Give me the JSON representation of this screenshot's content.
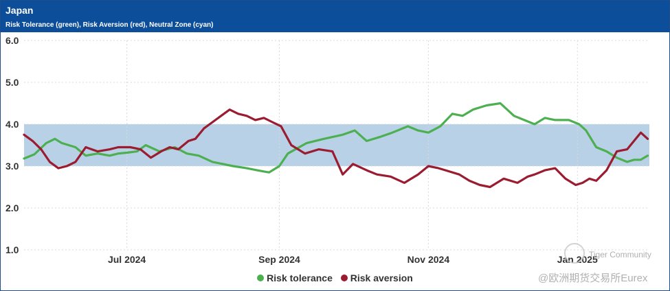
{
  "header": {
    "title": "Japan",
    "subtitle": "Risk Tolerance (green), Risk Aversion (red), Neutral Zone (cyan)"
  },
  "colors": {
    "header_bg": "#0c4e9a",
    "risk_tolerance": "#4caf50",
    "risk_aversion": "#9b1b30",
    "neutral_zone": "#b9d1e6",
    "grid": "#d9d9d9",
    "axis_text": "#333333"
  },
  "watermark": {
    "line1": "Tiger Community",
    "line2": "@欧洲期货交易所Eurex"
  },
  "chart_data": {
    "type": "line",
    "title": "Japan",
    "subtitle": "Risk Tolerance (green), Risk Aversion (red), Neutral Zone (cyan)",
    "xlabel": "",
    "ylabel": "",
    "x_unit": "weeks since 2024-05-20",
    "xlim": [
      0,
      36.5
    ],
    "ylim": [
      1.0,
      6.0
    ],
    "yticks": [
      1.0,
      2.0,
      3.0,
      4.0,
      5.0,
      6.0
    ],
    "ytick_labels": [
      "1.0",
      "2.0",
      "3.0",
      "4.0",
      "5.0",
      "6.0"
    ],
    "xticks": [
      {
        "x": 6.0,
        "label": "Jul 2024"
      },
      {
        "x": 14.9,
        "label": "Sep 2024"
      },
      {
        "x": 23.6,
        "label": "Nov 2024"
      },
      {
        "x": 32.3,
        "label": "Jan 2025"
      }
    ],
    "grid": true,
    "neutral_zone": {
      "name": "Neutral Zone",
      "y_from": 3.0,
      "y_to": 4.0
    },
    "legend": [
      "Risk tolerance",
      "Risk aversion"
    ],
    "legend_position": "bottom-center",
    "series": [
      {
        "name": "Risk tolerance",
        "x": [
          0,
          0.6,
          1.3,
          1.8,
          2.2,
          3.0,
          3.6,
          4.3,
          5.0,
          5.5,
          6.0,
          6.6,
          7.1,
          7.9,
          8.8,
          9.5,
          10.2,
          11.0,
          11.6,
          12.2,
          13.0,
          13.6,
          14.3,
          14.9,
          15.4,
          16.5,
          17.5,
          18.6,
          19.3,
          20.0,
          20.8,
          21.5,
          22.4,
          23.0,
          23.6,
          24.3,
          25.0,
          25.6,
          26.2,
          27.0,
          27.8,
          28.6,
          29.2,
          29.8,
          30.4,
          31.0,
          31.8,
          32.4,
          32.8,
          33.4,
          34.0,
          34.6,
          35.2,
          35.6,
          36.0,
          36.4
        ],
        "values": [
          3.18,
          3.28,
          3.55,
          3.65,
          3.55,
          3.45,
          3.25,
          3.3,
          3.25,
          3.3,
          3.32,
          3.35,
          3.5,
          3.35,
          3.45,
          3.3,
          3.25,
          3.1,
          3.05,
          3.0,
          2.95,
          2.9,
          2.85,
          3.0,
          3.3,
          3.55,
          3.65,
          3.75,
          3.85,
          3.6,
          3.7,
          3.8,
          3.95,
          3.85,
          3.8,
          3.95,
          4.25,
          4.2,
          4.35,
          4.45,
          4.5,
          4.2,
          4.1,
          4.0,
          4.15,
          4.1,
          4.1,
          4.0,
          3.85,
          3.45,
          3.35,
          3.2,
          3.1,
          3.15,
          3.15,
          3.25
        ]
      },
      {
        "name": "Risk aversion",
        "x": [
          0,
          0.5,
          1.0,
          1.5,
          2.0,
          2.5,
          3.0,
          3.6,
          4.3,
          5.0,
          5.5,
          6.2,
          6.8,
          7.4,
          8.0,
          8.5,
          9.0,
          9.6,
          10.0,
          10.5,
          11.0,
          11.5,
          12.0,
          12.5,
          13.0,
          13.5,
          14.0,
          14.5,
          15.0,
          15.6,
          16.4,
          17.2,
          18.0,
          18.6,
          19.2,
          20.0,
          20.6,
          21.4,
          22.2,
          23.0,
          23.6,
          24.2,
          24.6,
          25.4,
          26.0,
          26.6,
          27.2,
          28.0,
          28.8,
          29.4,
          29.8,
          30.4,
          31.0,
          31.6,
          32.2,
          32.6,
          33.0,
          33.4,
          34.0,
          34.6,
          35.2,
          35.6,
          36.0,
          36.4
        ],
        "values": [
          3.75,
          3.6,
          3.4,
          3.1,
          2.95,
          3.0,
          3.1,
          3.45,
          3.35,
          3.4,
          3.45,
          3.45,
          3.4,
          3.2,
          3.35,
          3.45,
          3.4,
          3.6,
          3.65,
          3.9,
          4.05,
          4.2,
          4.35,
          4.25,
          4.2,
          4.1,
          4.15,
          4.05,
          3.95,
          3.5,
          3.3,
          3.4,
          3.35,
          2.8,
          3.05,
          2.9,
          2.8,
          2.75,
          2.6,
          2.8,
          3.0,
          2.95,
          2.9,
          2.8,
          2.65,
          2.55,
          2.5,
          2.7,
          2.6,
          2.75,
          2.8,
          2.9,
          2.95,
          2.7,
          2.55,
          2.6,
          2.7,
          2.65,
          2.9,
          3.35,
          3.4,
          3.6,
          3.8,
          3.65
        ]
      }
    ]
  }
}
